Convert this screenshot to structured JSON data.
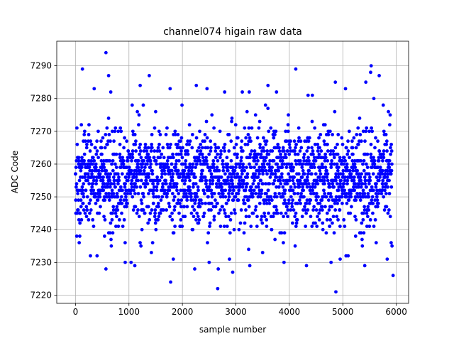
{
  "chart_data": {
    "type": "scatter",
    "title": "channel074 higain raw data",
    "xlabel": "sample number",
    "ylabel": "ADC Code",
    "xlim": [
      -350,
      6230
    ],
    "ylim": [
      7217.5,
      7297.5
    ],
    "xticks": [
      0,
      1000,
      2000,
      3000,
      4000,
      5000,
      6000
    ],
    "yticks": [
      7220,
      7230,
      7240,
      7250,
      7260,
      7270,
      7280,
      7290
    ],
    "grid": true,
    "marker_color": "#0000ff",
    "series": [
      {
        "n_samples": 5920,
        "points": [
          [
            570,
            7294
          ],
          [
            130,
            7289
          ],
          [
            4120,
            7289
          ],
          [
            5530,
            7290
          ],
          [
            5520,
            7288
          ],
          [
            1380,
            7287
          ],
          [
            620,
            7287
          ],
          [
            5680,
            7287
          ],
          [
            1210,
            7284
          ],
          [
            2260,
            7284
          ],
          [
            2460,
            7283
          ],
          [
            3600,
            7284
          ],
          [
            4860,
            7285
          ],
          [
            5430,
            7285
          ],
          [
            5050,
            7283
          ],
          [
            350,
            7283
          ],
          [
            660,
            7282
          ],
          [
            1770,
            7283
          ],
          [
            2790,
            7282
          ],
          [
            3120,
            7282
          ],
          [
            3250,
            7282
          ],
          [
            3760,
            7282
          ],
          [
            4350,
            7281
          ],
          [
            4430,
            7281
          ],
          [
            5580,
            7280
          ],
          [
            1780,
            7224
          ],
          [
            2660,
            7222
          ],
          [
            4870,
            7221
          ],
          [
            5940,
            7226
          ],
          [
            2940,
            7227
          ],
          [
            570,
            7228
          ],
          [
            2230,
            7228
          ],
          [
            2670,
            7228
          ],
          [
            1830,
            7231
          ],
          [
            1040,
            7230
          ],
          [
            930,
            7230
          ],
          [
            2500,
            7230
          ],
          [
            3260,
            7229
          ],
          [
            3900,
            7230
          ],
          [
            4320,
            7229
          ],
          [
            5410,
            7229
          ],
          [
            5830,
            7231
          ],
          [
            5060,
            7232
          ],
          [
            4780,
            7230
          ],
          [
            1110,
            7229
          ],
          [
            280,
            7232
          ],
          [
            3500,
            7233
          ],
          [
            1420,
            7233
          ],
          [
            2880,
            7231
          ],
          [
            4950,
            7231
          ]
        ],
        "dense_band": {
          "y_min": 7232,
          "y_max": 7278,
          "typical": 7256,
          "spread": 8
        }
      }
    ]
  }
}
